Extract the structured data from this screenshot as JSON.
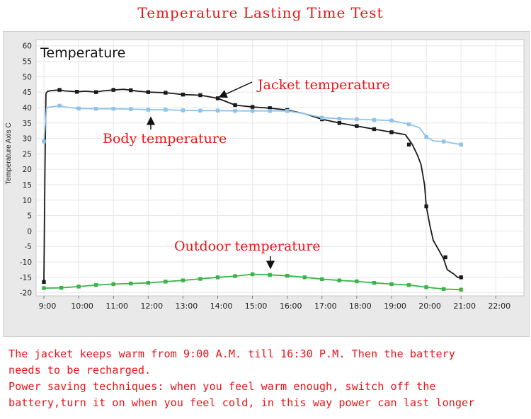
{
  "colors": {
    "title": "#e8141a",
    "annotation": "#e8141a",
    "notes": "#e8141a",
    "jacket": "#1a1a1a",
    "body": "#8fc3ea",
    "outdoor": "#39b54a",
    "plot_bg": "#ffffff",
    "grid": "#e6e6e6"
  },
  "page": {
    "title": "Temperature Lasting Time Test",
    "notes": [
      "The jacket keeps warm from 9:00 A.M. till 16:30 P.M. Then the battery",
      "needs to be recharged.",
      "Power saving techniques: when you feel warm enough, switch off the",
      "battery,turn it on when you feel cold, in this way power can last longer"
    ]
  },
  "chart_data": {
    "type": "line",
    "title": "Temperature",
    "xlabel": "",
    "ylabel": "Temperature Axis C",
    "xlim": [
      9.0,
      22.5
    ],
    "ylim": [
      -21,
      62
    ],
    "yticks": [
      60,
      55,
      50,
      45,
      40,
      35,
      30,
      25,
      20,
      15,
      10,
      5,
      0,
      -5,
      -10,
      -15,
      -20
    ],
    "xticks": [
      {
        "x": 9,
        "label": "9:00"
      },
      {
        "x": 10,
        "label": "10:00"
      },
      {
        "x": 11,
        "label": "11:00"
      },
      {
        "x": 12,
        "label": "12:00"
      },
      {
        "x": 13,
        "label": "13:00"
      },
      {
        "x": 14,
        "label": "14:00"
      },
      {
        "x": 15,
        "label": "15:00"
      },
      {
        "x": 16,
        "label": "16:00"
      },
      {
        "x": 17,
        "label": "17:00"
      },
      {
        "x": 18,
        "label": "18:00"
      },
      {
        "x": 19,
        "label": "19:00"
      },
      {
        "x": 20,
        "label": "20:00"
      },
      {
        "x": 21,
        "label": "21:00"
      },
      {
        "x": 22,
        "label": "22:00"
      }
    ],
    "grid": true,
    "series": [
      {
        "name": "Jacket temperature",
        "color": "#1a1a1a",
        "line": [
          [
            9.0,
            -16.5
          ],
          [
            9.03,
            20
          ],
          [
            9.06,
            44.5
          ],
          [
            9.1,
            45.2
          ],
          [
            9.2,
            45.5
          ],
          [
            9.45,
            45.7
          ],
          [
            9.6,
            45.4
          ],
          [
            9.95,
            45.1
          ],
          [
            10.2,
            45.3
          ],
          [
            10.5,
            45.0
          ],
          [
            10.7,
            45.4
          ],
          [
            11.0,
            45.7
          ],
          [
            11.3,
            45.9
          ],
          [
            11.5,
            45.6
          ],
          [
            11.7,
            45.3
          ],
          [
            12.0,
            45.0
          ],
          [
            12.5,
            44.8
          ],
          [
            13.0,
            44.2
          ],
          [
            13.5,
            44.0
          ],
          [
            14.0,
            43.0
          ],
          [
            14.5,
            40.8
          ],
          [
            15.0,
            40.2
          ],
          [
            15.5,
            39.8
          ],
          [
            16.0,
            39.2
          ],
          [
            16.5,
            38.0
          ],
          [
            17.0,
            36.2
          ],
          [
            17.5,
            35.0
          ],
          [
            18.0,
            34.0
          ],
          [
            18.5,
            33.0
          ],
          [
            19.0,
            32.0
          ],
          [
            19.4,
            31.2
          ],
          [
            19.6,
            28.0
          ],
          [
            19.75,
            24.5
          ],
          [
            19.85,
            21.5
          ],
          [
            19.95,
            15.0
          ],
          [
            20.0,
            8.0
          ],
          [
            20.1,
            2.0
          ],
          [
            20.2,
            -3.0
          ],
          [
            20.35,
            -6.0
          ],
          [
            20.5,
            -9.0
          ],
          [
            20.6,
            -12.5
          ],
          [
            20.8,
            -14.0
          ],
          [
            20.9,
            -15.0
          ],
          [
            21.0,
            -15.0
          ]
        ],
        "points": [
          [
            9.0,
            -16.5
          ],
          [
            9.45,
            45.7
          ],
          [
            9.95,
            45.1
          ],
          [
            10.5,
            45.0
          ],
          [
            11.0,
            45.7
          ],
          [
            11.5,
            45.6
          ],
          [
            12.0,
            45.0
          ],
          [
            12.5,
            44.8
          ],
          [
            13.0,
            44.2
          ],
          [
            13.5,
            44.0
          ],
          [
            14.0,
            43.0
          ],
          [
            14.5,
            40.8
          ],
          [
            15.0,
            40.2
          ],
          [
            15.5,
            39.8
          ],
          [
            16.0,
            39.2
          ],
          [
            17.0,
            36.2
          ],
          [
            17.5,
            35.0
          ],
          [
            18.0,
            34.0
          ],
          [
            18.5,
            33.0
          ],
          [
            19.0,
            32.0
          ],
          [
            19.5,
            28.0
          ],
          [
            20.0,
            8.0
          ],
          [
            20.55,
            -8.5
          ],
          [
            21.0,
            -15.0
          ]
        ]
      },
      {
        "name": "Body temperature",
        "color": "#8fc3ea",
        "line": [
          [
            9.0,
            29.0
          ],
          [
            9.08,
            40.0
          ],
          [
            9.2,
            40.2
          ],
          [
            9.45,
            40.6
          ],
          [
            9.6,
            40.2
          ],
          [
            10.0,
            39.7
          ],
          [
            10.5,
            39.6
          ],
          [
            11.0,
            39.6
          ],
          [
            11.5,
            39.5
          ],
          [
            12.0,
            39.3
          ],
          [
            12.5,
            39.3
          ],
          [
            13.0,
            39.1
          ],
          [
            13.5,
            39.0
          ],
          [
            14.0,
            39.0
          ],
          [
            14.5,
            38.9
          ],
          [
            15.0,
            38.9
          ],
          [
            15.5,
            38.9
          ],
          [
            16.0,
            38.9
          ],
          [
            16.5,
            38.0
          ],
          [
            17.0,
            36.7
          ],
          [
            17.5,
            36.4
          ],
          [
            18.0,
            36.2
          ],
          [
            18.5,
            36.0
          ],
          [
            19.0,
            35.8
          ],
          [
            19.5,
            34.6
          ],
          [
            19.8,
            33.5
          ],
          [
            20.0,
            30.5
          ],
          [
            20.2,
            29.2
          ],
          [
            20.5,
            29.0
          ],
          [
            21.0,
            28.0
          ]
        ],
        "points": [
          [
            9.0,
            29.0
          ],
          [
            9.45,
            40.6
          ],
          [
            10.0,
            39.7
          ],
          [
            10.5,
            39.6
          ],
          [
            11.0,
            39.6
          ],
          [
            11.5,
            39.5
          ],
          [
            12.0,
            39.3
          ],
          [
            12.5,
            39.3
          ],
          [
            13.0,
            39.1
          ],
          [
            13.5,
            39.0
          ],
          [
            14.0,
            39.0
          ],
          [
            14.5,
            38.9
          ],
          [
            15.0,
            38.9
          ],
          [
            15.5,
            38.9
          ],
          [
            16.0,
            38.9
          ],
          [
            17.0,
            36.7
          ],
          [
            17.5,
            36.4
          ],
          [
            18.0,
            36.2
          ],
          [
            18.5,
            36.0
          ],
          [
            19.0,
            35.8
          ],
          [
            19.5,
            34.6
          ],
          [
            20.0,
            30.5
          ],
          [
            20.5,
            29.0
          ],
          [
            21.0,
            28.0
          ]
        ]
      },
      {
        "name": "Outdoor temperature",
        "color": "#39b54a",
        "line": [
          [
            9.0,
            -18.5
          ],
          [
            9.5,
            -18.4
          ],
          [
            10.0,
            -18.0
          ],
          [
            10.5,
            -17.5
          ],
          [
            11.0,
            -17.2
          ],
          [
            11.5,
            -17.0
          ],
          [
            12.0,
            -16.8
          ],
          [
            12.5,
            -16.4
          ],
          [
            13.0,
            -16.0
          ],
          [
            13.5,
            -15.5
          ],
          [
            14.0,
            -15.0
          ],
          [
            14.5,
            -14.6
          ],
          [
            15.0,
            -14.0
          ],
          [
            15.5,
            -14.2
          ],
          [
            16.0,
            -14.5
          ],
          [
            16.5,
            -15.0
          ],
          [
            17.0,
            -15.6
          ],
          [
            17.5,
            -16.0
          ],
          [
            18.0,
            -16.3
          ],
          [
            18.5,
            -16.8
          ],
          [
            19.0,
            -17.2
          ],
          [
            19.5,
            -17.5
          ],
          [
            20.0,
            -18.2
          ],
          [
            20.5,
            -18.8
          ],
          [
            21.0,
            -19.0
          ]
        ],
        "points": [
          [
            9.0,
            -18.5
          ],
          [
            9.5,
            -18.4
          ],
          [
            10.0,
            -18.0
          ],
          [
            10.5,
            -17.5
          ],
          [
            11.0,
            -17.2
          ],
          [
            11.5,
            -17.0
          ],
          [
            12.0,
            -16.8
          ],
          [
            12.5,
            -16.4
          ],
          [
            13.0,
            -16.0
          ],
          [
            13.5,
            -15.5
          ],
          [
            14.0,
            -15.0
          ],
          [
            14.5,
            -14.6
          ],
          [
            15.0,
            -14.0
          ],
          [
            15.5,
            -14.2
          ],
          [
            16.0,
            -14.5
          ],
          [
            16.5,
            -15.0
          ],
          [
            17.0,
            -15.6
          ],
          [
            17.5,
            -16.0
          ],
          [
            18.0,
            -16.3
          ],
          [
            18.5,
            -16.8
          ],
          [
            19.0,
            -17.2
          ],
          [
            19.5,
            -17.5
          ],
          [
            20.0,
            -18.2
          ],
          [
            20.5,
            -18.8
          ],
          [
            21.0,
            -19.0
          ]
        ]
      }
    ],
    "annotations": [
      {
        "text": "Jacket temperature",
        "target": [
          14.0,
          43.0
        ]
      },
      {
        "text": "Body temperature",
        "target": [
          13.0,
          39.1
        ]
      },
      {
        "text": "Outdoor temperature",
        "target": [
          15.5,
          -14.2
        ]
      }
    ]
  }
}
